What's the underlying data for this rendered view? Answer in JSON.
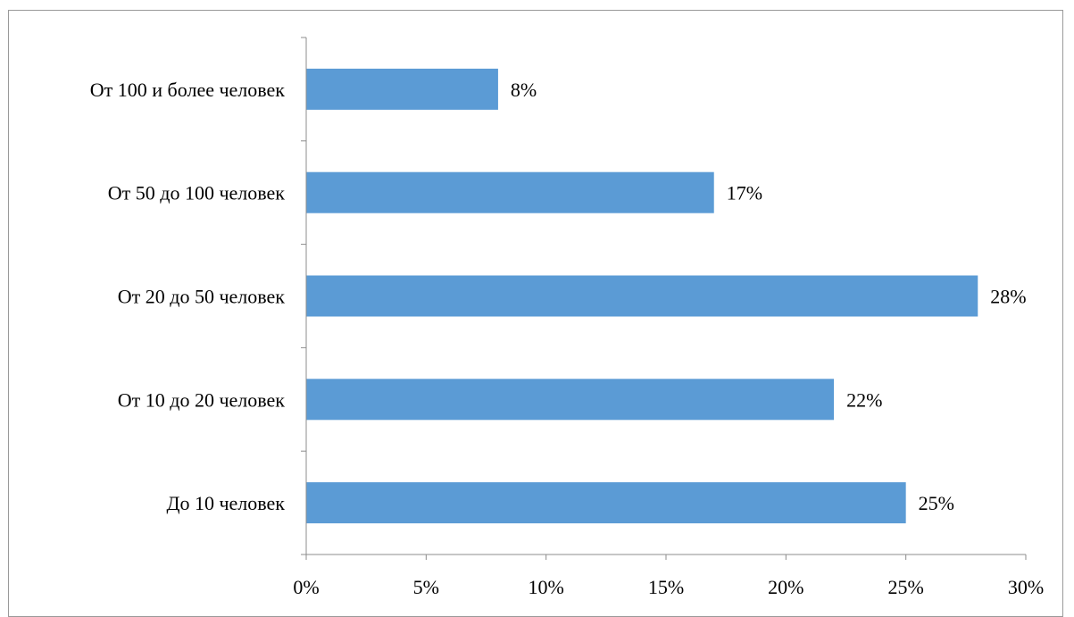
{
  "chart_data": {
    "type": "bar",
    "orientation": "horizontal",
    "categories": [
      "До 10 человек",
      "От 10 до 20 человек",
      "От 20 до 50 человек",
      "От 50 до 100 человек",
      "От 100 и более человек"
    ],
    "values": [
      25,
      22,
      28,
      17,
      8
    ],
    "value_labels": [
      "25%",
      "22%",
      "28%",
      "17%",
      "8%"
    ],
    "xlim": [
      0,
      30
    ],
    "x_ticks": [
      0,
      5,
      10,
      15,
      20,
      25,
      30
    ],
    "x_tick_labels": [
      "0%",
      "5%",
      "10%",
      "15%",
      "20%",
      "25%",
      "30%"
    ],
    "bar_color": "#5b9bd5",
    "grid": false,
    "legend": "none"
  }
}
